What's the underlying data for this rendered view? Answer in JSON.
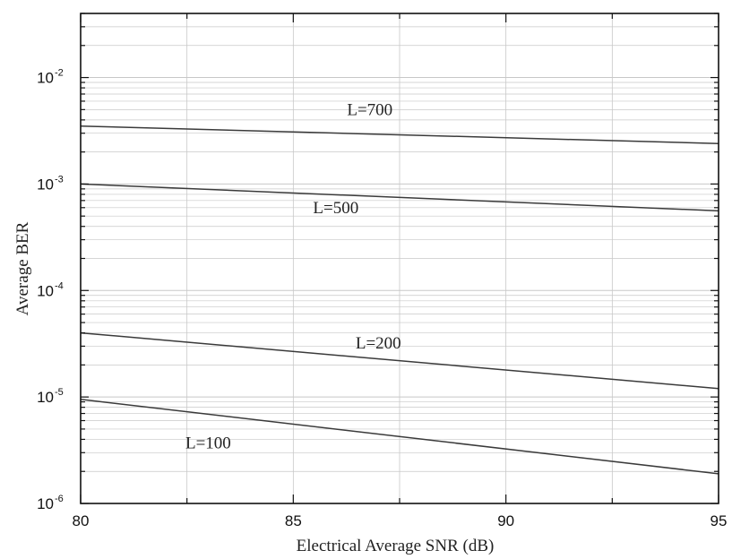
{
  "chart_data": {
    "type": "line",
    "xlabel": "Electrical Average SNR (dB)",
    "ylabel": "Average BER",
    "xlim": [
      80,
      95
    ],
    "ylim": [
      1e-06,
      0.04
    ],
    "yscale": "log",
    "grid": true,
    "x_ticks": [
      80,
      85,
      90,
      95
    ],
    "x_tick_labels": [
      "80",
      "85",
      "90",
      "95"
    ],
    "y_ticks": [
      {
        "value": 1e-06,
        "base": "10",
        "exp": "-6"
      },
      {
        "value": 1e-05,
        "base": "10",
        "exp": "-5"
      },
      {
        "value": 0.0001,
        "base": "10",
        "exp": "-4"
      },
      {
        "value": 0.001,
        "base": "10",
        "exp": "-3"
      },
      {
        "value": 0.01,
        "base": "10",
        "exp": "-2"
      }
    ],
    "series": [
      {
        "name": "L=700",
        "x": [
          80,
          95
        ],
        "y": [
          0.0035,
          0.0024
        ],
        "label_at": [
          86.8,
          0.005
        ]
      },
      {
        "name": "L=500",
        "x": [
          80,
          95
        ],
        "y": [
          0.001,
          0.00056
        ],
        "label_at": [
          86.0,
          0.0006
        ]
      },
      {
        "name": "L=200",
        "x": [
          80,
          95
        ],
        "y": [
          4e-05,
          1.2e-05
        ],
        "label_at": [
          87.0,
          3.2e-05
        ]
      },
      {
        "name": "L=100",
        "x": [
          80,
          95
        ],
        "y": [
          9.5e-06,
          1.9e-06
        ],
        "label_at": [
          83.0,
          3.7e-06
        ]
      }
    ]
  },
  "colors": {
    "line": "#3a3a3a",
    "grid": "#c8c8c8",
    "axis": "#111111"
  }
}
